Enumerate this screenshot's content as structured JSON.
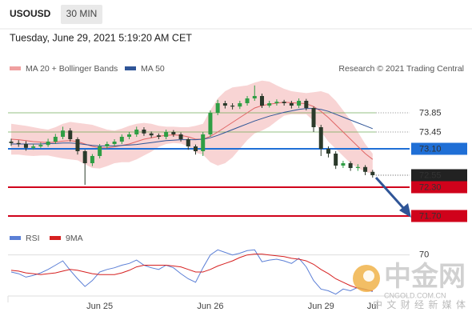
{
  "header": {
    "symbol": "USOUSD",
    "interval": "30 MIN",
    "timestamp": "Tuesday, June 29, 2021 5:19:20 AM CET",
    "credit": "Research © 2021 Trading Central"
  },
  "watermark": {
    "title": "中金网",
    "domain": "CNGOLD.COM.CN",
    "tagline": "中 文 财 经 新 媒 体"
  },
  "chart_data": [
    {
      "type": "candlestick",
      "up_color": "#2f9e44",
      "down_color": "#2b3a2b",
      "categories": [
        null,
        null,
        null,
        null,
        null,
        null,
        null,
        null,
        null,
        null,
        null,
        null,
        "Jun 25",
        null,
        null,
        null,
        null,
        null,
        null,
        null,
        null,
        null,
        null,
        null,
        null,
        null,
        null,
        "Jun 26",
        null,
        null,
        null,
        null,
        null,
        null,
        null,
        null,
        null,
        null,
        null,
        null,
        null,
        null,
        "Jun 29",
        null,
        null,
        null,
        null,
        null,
        null,
        "Jul"
      ],
      "open": [
        73.25,
        73.22,
        73.2,
        73.12,
        73.15,
        73.18,
        73.25,
        73.35,
        73.48,
        73.3,
        73.05,
        72.8,
        72.95,
        73.15,
        73.2,
        73.25,
        73.35,
        73.4,
        73.5,
        73.42,
        73.38,
        73.35,
        73.45,
        73.4,
        73.3,
        73.15,
        73.05,
        73.4,
        73.85,
        74.05,
        74.0,
        73.98,
        74.05,
        74.15,
        74.2,
        74.0,
        74.05,
        74.08,
        74.05,
        74.0,
        74.1,
        73.95,
        73.55,
        73.1,
        73.0,
        72.75,
        72.8,
        72.7,
        72.72,
        72.62
      ],
      "high": [
        73.31,
        73.28,
        73.26,
        73.2,
        73.23,
        73.31,
        73.41,
        73.56,
        73.53,
        73.34,
        73.08,
        72.99,
        73.2,
        73.25,
        73.3,
        73.4,
        73.45,
        73.56,
        73.55,
        73.46,
        73.42,
        73.5,
        73.49,
        73.44,
        73.33,
        73.19,
        73.45,
        73.9,
        74.12,
        74.1,
        74.05,
        74.1,
        74.2,
        74.42,
        74.25,
        74.1,
        74.13,
        74.12,
        74.1,
        74.15,
        74.14,
        73.98,
        73.6,
        73.15,
        73.05,
        72.85,
        72.84,
        72.78,
        72.76,
        72.66
      ],
      "low": [
        73.16,
        73.14,
        73.06,
        73.08,
        73.12,
        73.14,
        73.2,
        73.3,
        73.25,
        72.98,
        72.35,
        72.74,
        72.9,
        73.1,
        73.15,
        73.2,
        73.3,
        73.35,
        73.37,
        73.33,
        73.3,
        73.3,
        73.35,
        73.25,
        73.08,
        72.98,
        72.95,
        73.35,
        73.8,
        73.94,
        73.92,
        73.93,
        74.0,
        74.1,
        73.95,
        73.96,
        74.0,
        74.0,
        73.94,
        73.95,
        73.9,
        73.45,
        72.95,
        72.92,
        72.68,
        72.7,
        72.64,
        72.64,
        72.55,
        72.5
      ],
      "close": [
        73.22,
        73.2,
        73.12,
        73.15,
        73.18,
        73.25,
        73.35,
        73.48,
        73.3,
        73.05,
        72.8,
        72.95,
        73.15,
        73.2,
        73.25,
        73.35,
        73.4,
        73.5,
        73.42,
        73.38,
        73.35,
        73.45,
        73.4,
        73.3,
        73.15,
        73.05,
        73.4,
        73.85,
        74.05,
        74.0,
        73.98,
        74.05,
        74.15,
        74.2,
        74.0,
        74.05,
        74.08,
        74.05,
        74.0,
        74.1,
        73.95,
        73.55,
        73.1,
        73.0,
        72.75,
        72.8,
        72.7,
        72.72,
        72.62,
        72.55
      ],
      "series": [
        {
          "name": "MA 20 + Bollinger Bands",
          "color": "#e06666",
          "band_color": "#f6c9c9",
          "values": [
            73.3,
            73.29,
            73.27,
            73.25,
            73.24,
            73.23,
            73.24,
            73.26,
            73.27,
            73.25,
            73.2,
            73.15,
            73.12,
            73.12,
            73.14,
            73.17,
            73.2,
            73.25,
            73.3,
            73.33,
            73.36,
            73.38,
            73.39,
            73.38,
            73.35,
            73.3,
            73.3,
            73.36,
            73.45,
            73.55,
            73.65,
            73.75,
            73.85,
            73.95,
            74.0,
            74.03,
            74.05,
            74.07,
            74.06,
            74.05,
            74.04,
            73.98,
            73.88,
            73.75,
            73.6,
            73.45,
            73.3,
            73.15,
            73.0,
            72.88
          ],
          "upper": [
            73.62,
            73.6,
            73.58,
            73.55,
            73.52,
            73.5,
            73.55,
            73.62,
            73.66,
            73.64,
            73.62,
            73.6,
            73.55,
            73.5,
            73.48,
            73.52,
            73.58,
            73.62,
            73.64,
            73.62,
            73.58,
            73.56,
            73.56,
            73.55,
            73.55,
            73.58,
            73.62,
            73.9,
            74.15,
            74.3,
            74.38,
            74.4,
            74.42,
            74.48,
            74.52,
            74.5,
            74.42,
            74.35,
            74.3,
            74.28,
            74.26,
            74.28,
            74.3,
            74.25,
            74.1,
            73.9,
            73.7,
            73.45,
            73.2,
            73.0
          ],
          "lower": [
            72.98,
            72.98,
            72.96,
            72.95,
            72.96,
            72.96,
            72.93,
            72.9,
            72.88,
            72.86,
            72.78,
            72.7,
            72.69,
            72.74,
            72.8,
            72.82,
            72.82,
            72.88,
            72.96,
            73.04,
            73.14,
            73.2,
            73.22,
            73.21,
            73.15,
            73.02,
            72.98,
            72.82,
            72.75,
            72.8,
            72.92,
            73.1,
            73.28,
            73.42,
            73.48,
            73.56,
            73.68,
            73.79,
            73.82,
            73.82,
            73.82,
            73.68,
            73.46,
            73.25,
            73.1,
            72.95,
            72.8,
            72.7,
            72.62,
            72.58
          ]
        },
        {
          "name": "MA 50",
          "color": "#2f5597",
          "values": [
            73.2,
            73.2,
            73.2,
            73.2,
            73.2,
            73.21,
            73.21,
            73.22,
            73.22,
            73.21,
            73.19,
            73.17,
            73.16,
            73.16,
            73.16,
            73.17,
            73.18,
            73.19,
            73.21,
            73.23,
            73.25,
            73.27,
            73.28,
            73.29,
            73.29,
            73.29,
            73.3,
            73.33,
            73.38,
            73.44,
            73.5,
            73.56,
            73.62,
            73.68,
            73.73,
            73.78,
            73.82,
            73.86,
            73.89,
            73.92,
            73.94,
            73.94,
            73.92,
            73.88,
            73.82,
            73.76,
            73.7,
            73.64,
            73.58,
            73.52
          ]
        }
      ],
      "levels": [
        {
          "value": 73.85,
          "color": "#6aa84f",
          "boxed": false,
          "line": "solid-dotted"
        },
        {
          "value": 73.45,
          "color": "#6aa84f",
          "boxed": false,
          "line": "solid-dotted"
        },
        {
          "value": 73.1,
          "label": "73.10",
          "color": "#1f6fd6",
          "boxed": true,
          "line": "solid"
        },
        {
          "value": 72.55,
          "color": "#222222",
          "boxed": true,
          "line": "dotted"
        },
        {
          "value": 72.3,
          "label": "72.30",
          "color": "#d0021b",
          "boxed": true,
          "line": "solid"
        },
        {
          "value": 71.7,
          "label": "71.70",
          "color": "#d0021b",
          "boxed": true,
          "line": "solid"
        }
      ],
      "ylim": [
        71.45,
        74.6
      ]
    },
    {
      "type": "line",
      "ylim": [
        20,
        95
      ],
      "yticks": [
        70
      ],
      "series": [
        {
          "name": "RSI",
          "color": "#5b7fd6",
          "values": [
            50,
            48,
            44,
            46,
            49,
            53,
            58,
            63,
            52,
            42,
            33,
            40,
            50,
            53,
            55,
            58,
            60,
            64,
            58,
            55,
            53,
            58,
            55,
            48,
            42,
            38,
            55,
            70,
            76,
            73,
            70,
            72,
            75,
            76,
            62,
            64,
            65,
            63,
            60,
            66,
            56,
            40,
            30,
            28,
            24,
            30,
            28,
            32,
            30,
            27
          ]
        },
        {
          "name": "9MA",
          "color": "#d62020",
          "values": [
            52,
            51,
            49,
            48,
            47,
            48,
            49,
            51,
            53,
            52,
            50,
            48,
            47,
            47,
            47,
            49,
            52,
            56,
            58,
            58,
            58,
            58,
            57,
            56,
            53,
            50,
            50,
            53,
            57,
            60,
            63,
            67,
            70,
            71,
            71,
            70,
            69,
            68,
            66,
            65,
            63,
            59,
            53,
            48,
            42,
            38,
            34,
            31,
            29,
            28
          ]
        }
      ]
    }
  ]
}
